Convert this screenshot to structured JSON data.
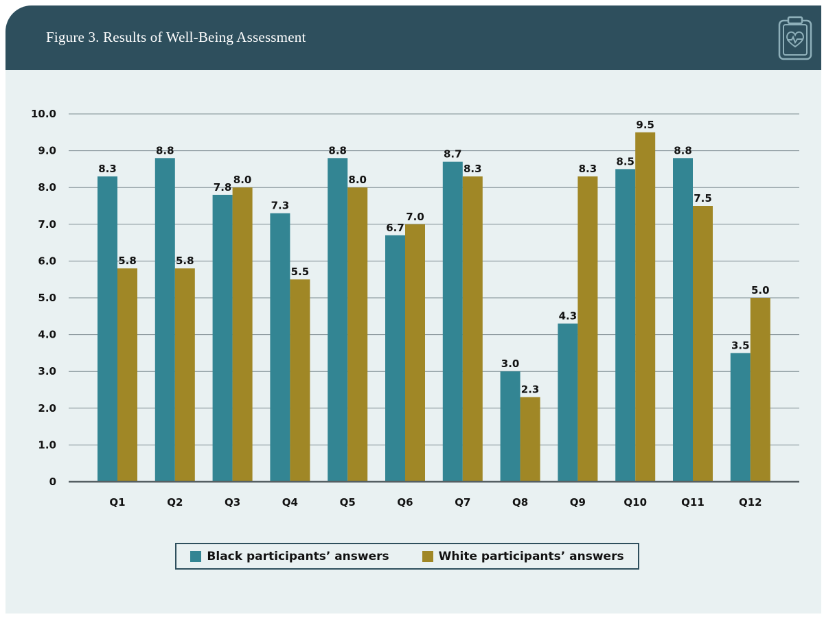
{
  "header": {
    "title": "Figure 3. Results of Well-Being Assessment"
  },
  "colors": {
    "header_bg": "#2e4f5d",
    "panel_bg": "#e9f1f2",
    "black_series": "#338593",
    "white_series": "#a08726"
  },
  "icons": {
    "header_icon": "clipboard-heart-icon"
  },
  "chart_data": {
    "type": "bar",
    "title": "Figure 3. Results of Well-Being Assessment",
    "categories": [
      "Q1",
      "Q2",
      "Q3",
      "Q4",
      "Q5",
      "Q6",
      "Q7",
      "Q8",
      "Q9",
      "Q10",
      "Q11",
      "Q12"
    ],
    "series": [
      {
        "name": "Black participants’ answers",
        "color": "#338593",
        "values": [
          8.3,
          8.8,
          7.8,
          7.3,
          8.8,
          6.7,
          8.7,
          3.0,
          4.3,
          8.5,
          8.8,
          3.5
        ]
      },
      {
        "name": "White participants’ answers",
        "color": "#a08726",
        "values": [
          5.8,
          5.8,
          8.0,
          5.5,
          8.0,
          7.0,
          8.3,
          2.3,
          8.3,
          9.5,
          7.5,
          5.0
        ]
      }
    ],
    "yticks": [
      "0",
      "1.0",
      "2.0",
      "3.0",
      "4.0",
      "5.0",
      "6.0",
      "7.0",
      "8.0",
      "9.0",
      "10.0"
    ],
    "ylim": [
      0,
      10
    ],
    "xlabel": "",
    "ylabel": "",
    "grid": true,
    "legend_position": "bottom"
  }
}
